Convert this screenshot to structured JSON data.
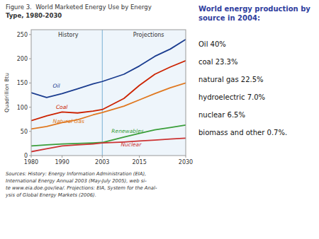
{
  "chart_data": {
    "type": "line",
    "title": "Figure 3.  World Marketed Energy Use by Energy",
    "subtitle": "Type, 1980-2030",
    "y_label": "Quadrillion Btu",
    "x": [
      1980,
      1985,
      1990,
      1995,
      2000,
      2003,
      2010,
      2015,
      2020,
      2025,
      2030
    ],
    "xlim": [
      1980,
      2030
    ],
    "xticks": [
      1980,
      1990,
      2003,
      2015,
      2030
    ],
    "ylim": [
      0,
      260
    ],
    "yticks": [
      0,
      50,
      100,
      150,
      200,
      250
    ],
    "grid": false,
    "divider_x": 2003,
    "series": [
      {
        "name": "Oil",
        "color": "#1a3c8f",
        "values": [
          130,
          120,
          128,
          138,
          148,
          153,
          168,
          185,
          205,
          220,
          240
        ],
        "label_x": 1987,
        "label_y": 143
      },
      {
        "name": "Coal",
        "color": "#cc2200",
        "values": [
          72,
          82,
          90,
          88,
          92,
          95,
          118,
          145,
          168,
          183,
          196
        ],
        "label_x": 1988,
        "label_y": 100
      },
      {
        "name": "Natural Gas",
        "color": "#e07820",
        "values": [
          55,
          60,
          68,
          74,
          84,
          89,
          102,
          115,
          128,
          140,
          150
        ],
        "label_x": 1987,
        "label_y": 70
      },
      {
        "name": "Renewables",
        "color": "#3a9e3a",
        "values": [
          20,
          22,
          24,
          25,
          26,
          27,
          38,
          46,
          53,
          58,
          63
        ],
        "label_x": 2006,
        "label_y": 50
      },
      {
        "name": "Nuclear",
        "color": "#cc3333",
        "values": [
          8,
          14,
          20,
          22,
          24,
          26,
          28,
          30,
          32,
          34,
          36
        ],
        "label_x": 2009,
        "label_y": 22
      }
    ],
    "annotations": [
      {
        "text": "History",
        "x": 1992,
        "y": 246
      },
      {
        "text": "Projections",
        "x": 2018,
        "y": 246
      }
    ],
    "sources": [
      [
        "Sources: ",
        "History:",
        " Energy Information Administration (EIA),"
      ],
      [
        "International Energy Annual 2003 (May-July 2005), web si-"
      ],
      [
        "te www.eia.doe.gov/iea/. ",
        "Projections:",
        " EIA, System for the Anal-"
      ],
      [
        "ysis of Global Energy Markets (2006)."
      ]
    ],
    "side_title": "World energy production by\nsource in 2004:",
    "side_items": [
      "Oil 40%",
      "coal 23.3%",
      "natural gas 22.5%",
      "hydroelectric 7.0%",
      "nuclear 6.5%",
      "biomass and other 0.7%."
    ]
  }
}
